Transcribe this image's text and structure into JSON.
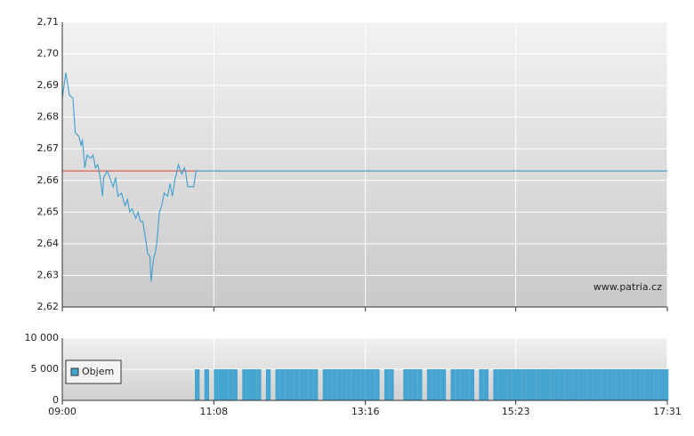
{
  "chart_data": [
    {
      "type": "line",
      "watermark": "www.patria.cz",
      "x": [
        540,
        543,
        546,
        549,
        551,
        554,
        556,
        557,
        559,
        561,
        564,
        566,
        568,
        570,
        572,
        574,
        575,
        578,
        581,
        583,
        585,
        587,
        590,
        593,
        595,
        597,
        599,
        602,
        604,
        606,
        608,
        611,
        612,
        614,
        615,
        617,
        619,
        620,
        622,
        624,
        626,
        629,
        631,
        633,
        635,
        637,
        638,
        641,
        643,
        644,
        646,
        650,
        651,
        653,
        1051
      ],
      "series": [
        {
          "color": "#4aa3d0",
          "values": [
            2.686,
            2.694,
            2.687,
            2.686,
            2.675,
            2.674,
            2.671,
            2.673,
            2.664,
            2.668,
            2.667,
            2.668,
            2.664,
            2.665,
            2.661,
            2.655,
            2.661,
            2.663,
            2.66,
            2.658,
            2.661,
            2.655,
            2.656,
            2.652,
            2.654,
            2.65,
            2.651,
            2.648,
            2.65,
            2.647,
            2.647,
            2.64,
            2.637,
            2.636,
            2.628,
            2.635,
            2.638,
            2.641,
            2.65,
            2.652,
            2.656,
            2.655,
            2.659,
            2.655,
            2.66,
            2.663,
            2.665,
            2.662,
            2.664,
            2.663,
            2.658,
            2.658,
            2.658,
            2.663,
            2.663
          ]
        }
      ],
      "reference_line": {
        "value": 2.663,
        "color": "#d9412e"
      },
      "xlim": [
        540,
        1051
      ],
      "xticks": [
        {
          "value": 540,
          "label": "09:00"
        },
        {
          "value": 668,
          "label": "11:08"
        },
        {
          "value": 796,
          "label": "13:16"
        },
        {
          "value": 923,
          "label": "15:23"
        },
        {
          "value": 1051,
          "label": "17:31"
        }
      ],
      "ylim": [
        2.62,
        2.71
      ],
      "yticks": [
        {
          "value": 2.62,
          "label": "2,62"
        },
        {
          "value": 2.63,
          "label": "2,63"
        },
        {
          "value": 2.64,
          "label": "2,64"
        },
        {
          "value": 2.65,
          "label": "2,65"
        },
        {
          "value": 2.66,
          "label": "2,66"
        },
        {
          "value": 2.67,
          "label": "2,67"
        },
        {
          "value": 2.68,
          "label": "2,68"
        },
        {
          "value": 2.69,
          "label": "2,69"
        },
        {
          "value": 2.7,
          "label": "2,70"
        },
        {
          "value": 2.71,
          "label": "2,71"
        }
      ],
      "grid": true
    },
    {
      "type": "bar",
      "x": [
        652,
        656,
        660,
        664,
        668,
        672,
        676,
        680,
        684,
        688,
        692,
        696,
        700,
        704,
        708,
        712,
        716,
        720,
        724,
        728,
        732,
        736,
        740,
        744,
        748,
        752,
        756,
        760,
        764,
        768,
        772,
        776,
        780,
        784,
        788,
        792,
        796,
        800,
        804,
        808,
        812,
        816,
        820,
        824,
        828,
        832,
        836,
        840,
        844,
        848,
        852,
        856,
        860,
        864,
        868,
        872,
        876,
        880,
        884,
        888,
        892,
        896,
        900,
        904,
        908,
        912,
        916,
        920,
        924,
        928,
        932,
        936,
        940,
        944,
        948,
        952,
        956,
        960,
        964,
        968,
        972,
        976,
        980,
        984,
        988,
        992,
        996,
        1000,
        1004,
        1008,
        1012,
        1016,
        1020,
        1024,
        1028,
        1032,
        1036,
        1040,
        1044,
        1048
      ],
      "bar_width": 4,
      "series": [
        {
          "name": "Objem",
          "color": "#45a5d0",
          "values": [
            5000,
            0,
            5000,
            0,
            5000,
            5000,
            5000,
            5000,
            5000,
            0,
            5000,
            5000,
            5000,
            5000,
            0,
            5000,
            0,
            5000,
            5000,
            5000,
            5000,
            5000,
            5000,
            5000,
            5000,
            5000,
            0,
            5000,
            5000,
            5000,
            5000,
            5000,
            5000,
            5000,
            5000,
            5000,
            5000,
            5000,
            5000,
            0,
            5000,
            5000,
            0,
            0,
            5000,
            5000,
            5000,
            5000,
            0,
            5000,
            5000,
            5000,
            5000,
            0,
            5000,
            5000,
            5000,
            5000,
            5000,
            0,
            5000,
            5000,
            0,
            5000,
            5000,
            5000,
            5000,
            5000,
            5000,
            5000,
            5000,
            5000,
            5000,
            5000,
            5000,
            5000,
            5000,
            5000,
            5000,
            5000,
            5000,
            5000,
            5000,
            5000,
            5000,
            5000,
            5000,
            5000,
            5000,
            5000,
            5000,
            5000,
            5000,
            5000,
            5000,
            5000,
            5000,
            5000,
            5000,
            5000
          ]
        }
      ],
      "xlim": [
        540,
        1051
      ],
      "xticks": [
        {
          "value": 540,
          "label": "09:00"
        },
        {
          "value": 668,
          "label": "11:08"
        },
        {
          "value": 796,
          "label": "13:16"
        },
        {
          "value": 923,
          "label": "15:23"
        },
        {
          "value": 1051,
          "label": "17:31"
        }
      ],
      "ylim": [
        0,
        10000
      ],
      "yticks": [
        0,
        {
          "value": 5000,
          "label": "5 000"
        },
        {
          "value": 10000,
          "label": "10 000"
        }
      ],
      "grid": true,
      "legend": "left"
    }
  ]
}
